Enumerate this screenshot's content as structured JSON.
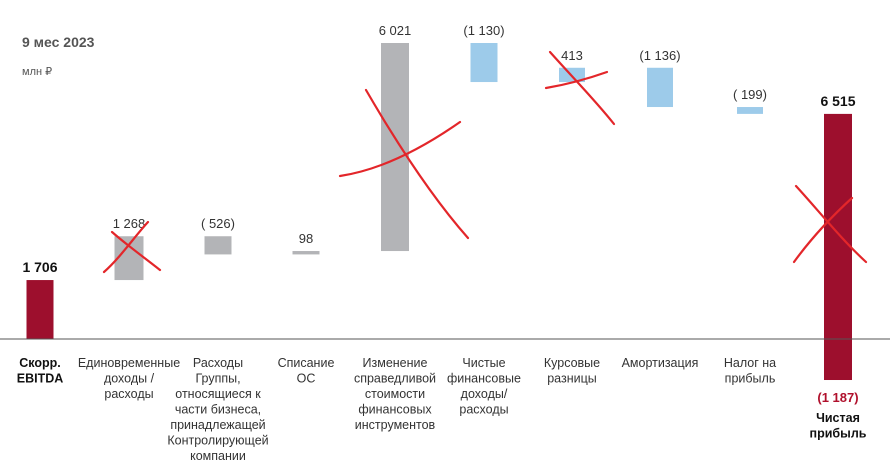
{
  "chart_data": {
    "type": "bar",
    "title": "9 мес 2023",
    "unit": "млн ₽",
    "colors": {
      "total": "#9d0f2d",
      "gray": "#b3b4b7",
      "blue": "#9dcbea",
      "axis": "#555555",
      "cross": "#e3262a"
    },
    "bars": [
      {
        "label": [
          "Скорр.",
          "EBITDA"
        ],
        "value_label": "1 706",
        "value": 1706,
        "base": 0,
        "color": "total",
        "bold": true,
        "crossed": false
      },
      {
        "label": [
          "Единовременные",
          "доходы /",
          "расходы"
        ],
        "value_label": "1 268",
        "value": 1268,
        "base": 1706,
        "color": "gray",
        "crossed": true
      },
      {
        "label": [
          "Расходы",
          "Группы,",
          "относящиеся к",
          "части бизнеса,",
          "принадлежащей",
          "Контролирующей",
          "компании"
        ],
        "value_label": "( 526)",
        "value": -526,
        "base": 2974,
        "color": "gray",
        "crossed": false
      },
      {
        "label": [
          "Списание",
          "ОС"
        ],
        "value_label": "98",
        "value": 98,
        "base": 2448,
        "color": "gray",
        "crossed": false
      },
      {
        "label": [
          "Изменение",
          "справедливой",
          "стоимости",
          "финансовых",
          "инструментов"
        ],
        "value_label": "6 021",
        "value": 6021,
        "base": 2546,
        "color": "gray",
        "crossed": true
      },
      {
        "label": [
          "Чистые",
          "финансовые",
          "доходы/",
          "расходы"
        ],
        "value_label": "(1 130)",
        "value": -1130,
        "base": 8567,
        "color": "blue",
        "crossed": false
      },
      {
        "label": [
          "Курсовые",
          "разницы"
        ],
        "value_label": "413",
        "value": 413,
        "base": 7437,
        "color": "blue",
        "crossed": true
      },
      {
        "label": [
          "Амортизация"
        ],
        "value_label": "(1 136)",
        "value": -1136,
        "base": 7850,
        "color": "blue",
        "crossed": false
      },
      {
        "label": [
          "Налог на",
          "прибыль"
        ],
        "value_label": "( 199)",
        "value": -199,
        "base": 6714,
        "color": "blue",
        "crossed": false
      },
      {
        "label": [
          "Чистая",
          "прибыль"
        ],
        "value_label": "6 515",
        "value": 6515,
        "base": 0,
        "color": "total",
        "bold": true,
        "crossed": true,
        "neg_value_label": "(1 187)",
        "neg_value": -1187
      }
    ],
    "ylim": [
      -1187,
      8567
    ]
  }
}
